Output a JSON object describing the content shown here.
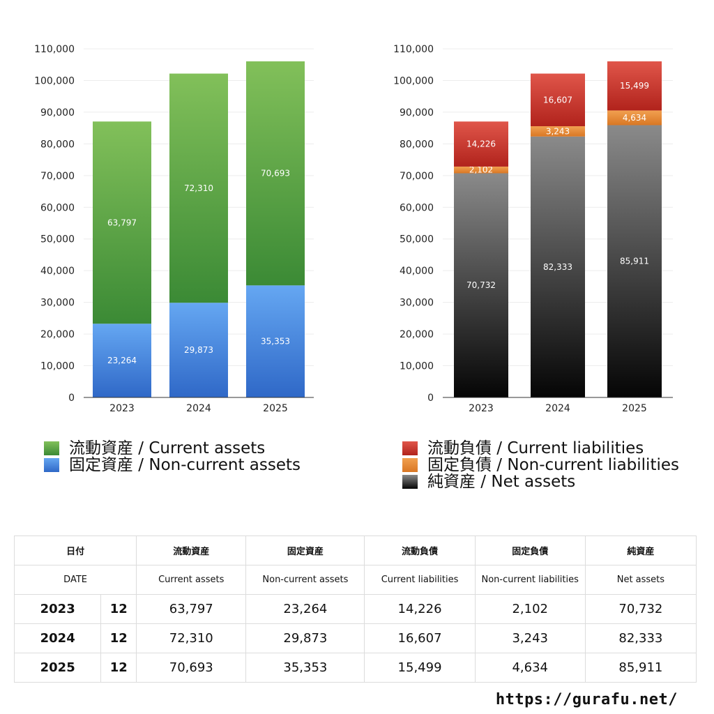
{
  "colors": {
    "current_assets": [
      "#82c05a",
      "#3b8a35"
    ],
    "non_current_assets": [
      "#65a7f2",
      "#2f68c7"
    ],
    "current_liabilities": [
      "#e0564a",
      "#b1231c"
    ],
    "non_current_liabilities": [
      "#f1a050",
      "#d97724"
    ],
    "net_assets": [
      "#8a8a8a",
      "#050505"
    ]
  },
  "chart_data": [
    {
      "type": "bar",
      "stacked": true,
      "categories": [
        "2023",
        "2024",
        "2025"
      ],
      "series": [
        {
          "name": "固定資産 / Non-current assets",
          "values": [
            23264,
            29873,
            35353
          ],
          "labels": [
            "23,264",
            "29,873",
            "35,353"
          ],
          "color_key": "non_current_assets"
        },
        {
          "name": "流動資産 / Current assets",
          "values": [
            63797,
            72310,
            70693
          ],
          "labels": [
            "63,797",
            "72,310",
            "70,693"
          ],
          "color_key": "current_assets"
        }
      ],
      "ylim": [
        0,
        110000
      ],
      "yticks": [
        "0",
        "10,000",
        "20,000",
        "30,000",
        "40,000",
        "50,000",
        "60,000",
        "70,000",
        "80,000",
        "90,000",
        "100,000",
        "110,000"
      ],
      "grid": true,
      "legend": "bottom",
      "legend_items": [
        {
          "label": "流動資産 / Current assets",
          "color_key": "current_assets"
        },
        {
          "label": "固定資産 / Non-current assets",
          "color_key": "non_current_assets"
        }
      ]
    },
    {
      "type": "bar",
      "stacked": true,
      "categories": [
        "2023",
        "2024",
        "2025"
      ],
      "series": [
        {
          "name": "純資産 / Net assets",
          "values": [
            70732,
            82333,
            85911
          ],
          "labels": [
            "70,732",
            "82,333",
            "85,911"
          ],
          "color_key": "net_assets"
        },
        {
          "name": "固定負債 / Non-current liabilities",
          "values": [
            2102,
            3243,
            4634
          ],
          "labels": [
            "2,102",
            "3,243",
            "4,634"
          ],
          "color_key": "non_current_liabilities"
        },
        {
          "name": "流動負債 / Current liabilities",
          "values": [
            14226,
            16607,
            15499
          ],
          "labels": [
            "14,226",
            "16,607",
            "15,499"
          ],
          "color_key": "current_liabilities"
        }
      ],
      "ylim": [
        0,
        110000
      ],
      "yticks": [
        "0",
        "10,000",
        "20,000",
        "30,000",
        "40,000",
        "50,000",
        "60,000",
        "70,000",
        "80,000",
        "90,000",
        "100,000",
        "110,000"
      ],
      "grid": true,
      "legend": "bottom",
      "legend_items": [
        {
          "label": "流動負債 / Current liabilities",
          "color_key": "current_liabilities"
        },
        {
          "label": "固定負債 / Non-current liabilities",
          "color_key": "non_current_liabilities"
        },
        {
          "label": "純資産 / Net assets",
          "color_key": "net_assets"
        }
      ]
    }
  ],
  "table": {
    "header_ja": [
      "日付",
      "流動資産",
      "固定資産",
      "流動負債",
      "固定負債",
      "純資産"
    ],
    "header_en": [
      "DATE",
      "Current assets",
      "Non-current assets",
      "Current liabilities",
      "Non-current liabilities",
      "Net assets"
    ],
    "rows": [
      {
        "year": "2023",
        "month": "12",
        "values": [
          "63,797",
          "23,264",
          "14,226",
          "2,102",
          "70,732"
        ]
      },
      {
        "year": "2024",
        "month": "12",
        "values": [
          "72,310",
          "29,873",
          "16,607",
          "3,243",
          "82,333"
        ]
      },
      {
        "year": "2025",
        "month": "12",
        "values": [
          "70,693",
          "35,353",
          "15,499",
          "4,634",
          "85,911"
        ]
      }
    ]
  },
  "site": "https://gurafu.net/"
}
